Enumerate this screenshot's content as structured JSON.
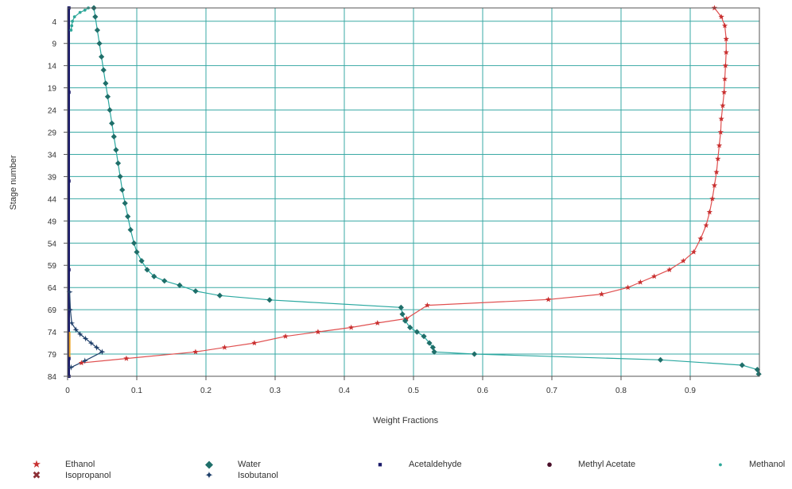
{
  "chart_data": {
    "type": "scatter",
    "title": "",
    "xlabel": "Weight Fractions",
    "ylabel": "Stage number",
    "xlim": [
      0,
      1
    ],
    "ylim": [
      1,
      84
    ],
    "y_reversed": true,
    "grid": true,
    "legend_position": "bottom",
    "x_ticks": [
      0,
      0.1,
      0.2,
      0.3,
      0.4,
      0.5,
      0.6,
      0.7,
      0.8,
      0.9
    ],
    "x_tick_labels": [
      "0",
      "0.1",
      "0.2",
      "0.3",
      "0.4",
      "0.5",
      "0.6",
      "0.7",
      "0.8",
      "0.9"
    ],
    "y_ticks": [
      4,
      9,
      14,
      19,
      24,
      29,
      34,
      39,
      44,
      49,
      54,
      59,
      64,
      69,
      74,
      79,
      84
    ],
    "y_tick_labels": [
      "4",
      "9",
      "14",
      "19",
      "24",
      "29",
      "34",
      "39",
      "44",
      "49",
      "54",
      "59",
      "64",
      "69",
      "74",
      "79",
      "84"
    ],
    "series": [
      {
        "name": "Ethanol",
        "color": "#c83030",
        "line_color": "#e05050",
        "marker": "star",
        "points": [
          [
            0.935,
            1
          ],
          [
            0.945,
            3
          ],
          [
            0.95,
            5
          ],
          [
            0.952,
            8
          ],
          [
            0.952,
            11
          ],
          [
            0.951,
            14
          ],
          [
            0.95,
            17
          ],
          [
            0.949,
            20
          ],
          [
            0.947,
            23
          ],
          [
            0.945,
            26
          ],
          [
            0.944,
            29
          ],
          [
            0.942,
            32
          ],
          [
            0.94,
            35
          ],
          [
            0.938,
            38
          ],
          [
            0.935,
            41
          ],
          [
            0.932,
            44
          ],
          [
            0.928,
            47
          ],
          [
            0.923,
            50
          ],
          [
            0.915,
            53
          ],
          [
            0.905,
            56
          ],
          [
            0.89,
            58
          ],
          [
            0.87,
            60
          ],
          [
            0.848,
            61.5
          ],
          [
            0.828,
            62.8
          ],
          [
            0.81,
            64
          ],
          [
            0.772,
            65.5
          ],
          [
            0.695,
            66.7
          ],
          [
            0.52,
            68
          ],
          [
            0.49,
            71
          ],
          [
            0.448,
            72
          ],
          [
            0.41,
            73
          ],
          [
            0.362,
            74
          ],
          [
            0.315,
            75
          ],
          [
            0.27,
            76.5
          ],
          [
            0.227,
            77.5
          ],
          [
            0.185,
            78.5
          ],
          [
            0.085,
            80
          ],
          [
            0.02,
            81
          ]
        ]
      },
      {
        "name": "Water",
        "color": "#1f6f6a",
        "line_color": "#2aa8a0",
        "marker": "diamond",
        "points": [
          [
            0.038,
            1
          ],
          [
            0.04,
            3
          ],
          [
            0.043,
            6
          ],
          [
            0.046,
            9
          ],
          [
            0.049,
            12
          ],
          [
            0.052,
            15
          ],
          [
            0.055,
            18
          ],
          [
            0.058,
            21
          ],
          [
            0.061,
            24
          ],
          [
            0.064,
            27
          ],
          [
            0.067,
            30
          ],
          [
            0.07,
            33
          ],
          [
            0.073,
            36
          ],
          [
            0.076,
            39
          ],
          [
            0.079,
            42
          ],
          [
            0.083,
            45
          ],
          [
            0.087,
            48
          ],
          [
            0.091,
            51
          ],
          [
            0.096,
            54
          ],
          [
            0.1,
            56
          ],
          [
            0.107,
            58
          ],
          [
            0.115,
            60
          ],
          [
            0.125,
            61.5
          ],
          [
            0.14,
            62.5
          ],
          [
            0.162,
            63.5
          ],
          [
            0.185,
            64.8
          ],
          [
            0.22,
            65.8
          ],
          [
            0.292,
            66.8
          ],
          [
            0.482,
            68.5
          ],
          [
            0.484,
            70
          ],
          [
            0.488,
            71.5
          ],
          [
            0.495,
            73
          ],
          [
            0.505,
            74
          ],
          [
            0.515,
            75
          ],
          [
            0.523,
            76.5
          ],
          [
            0.528,
            77.5
          ],
          [
            0.53,
            78.5
          ],
          [
            0.588,
            79
          ],
          [
            0.857,
            80.3
          ],
          [
            0.975,
            81.5
          ],
          [
            0.997,
            82.5
          ],
          [
            0.999,
            83.5
          ]
        ]
      },
      {
        "name": "Acetaldehyde",
        "color": "#1a1a6a",
        "line_color": "#1a1a6a",
        "marker": "square",
        "points": [
          [
            0.002,
            1
          ],
          [
            0.002,
            20
          ],
          [
            0.002,
            40
          ],
          [
            0.002,
            60
          ],
          [
            0.002,
            80
          ],
          [
            0.002,
            84
          ]
        ]
      },
      {
        "name": "Methyl Acetate",
        "color": "#4a0f2a",
        "line_color": "#4a0f2a",
        "marker": "circle",
        "points": []
      },
      {
        "name": "Methanol",
        "color": "#2fa89a",
        "line_color": "#2fa89a",
        "marker": "dot",
        "points": [
          [
            0.03,
            1
          ],
          [
            0.025,
            1.5
          ],
          [
            0.018,
            2
          ],
          [
            0.01,
            3
          ],
          [
            0.007,
            4
          ],
          [
            0.006,
            5
          ],
          [
            0.005,
            6
          ]
        ]
      },
      {
        "name": "Isopropanol",
        "color": "#8c2f35",
        "line_color": "#8c2f35",
        "marker": "cross",
        "points": []
      },
      {
        "name": "Isobutanol",
        "color": "#1f3f6a",
        "line_color": "#1f3f6a",
        "marker": "star4",
        "points": [
          [
            0.003,
            65
          ],
          [
            0.004,
            69
          ],
          [
            0.006,
            72
          ],
          [
            0.012,
            73.5
          ],
          [
            0.018,
            74.5
          ],
          [
            0.026,
            75.5
          ],
          [
            0.034,
            76.5
          ],
          [
            0.042,
            77.5
          ],
          [
            0.05,
            78.5
          ],
          [
            0.025,
            80.5
          ],
          [
            0.005,
            82
          ]
        ]
      }
    ]
  },
  "legend": {
    "items": [
      {
        "label": "Ethanol",
        "symbol": "star-icon",
        "color": "#c83030"
      },
      {
        "label": "Water",
        "symbol": "diamond-icon",
        "color": "#1f6f6a"
      },
      {
        "label": "Acetaldehyde",
        "symbol": "square-icon",
        "color": "#1a1a6a"
      },
      {
        "label": "Methyl Acetate",
        "symbol": "circle-icon",
        "color": "#4a0f2a"
      },
      {
        "label": "Methanol",
        "symbol": "dot-icon",
        "color": "#2fa89a"
      },
      {
        "label": "Isopropanol",
        "symbol": "cross-icon",
        "color": "#8c2f35"
      },
      {
        "label": "Isobutanol",
        "symbol": "four-point-star-icon",
        "color": "#1f3f6a"
      }
    ]
  }
}
